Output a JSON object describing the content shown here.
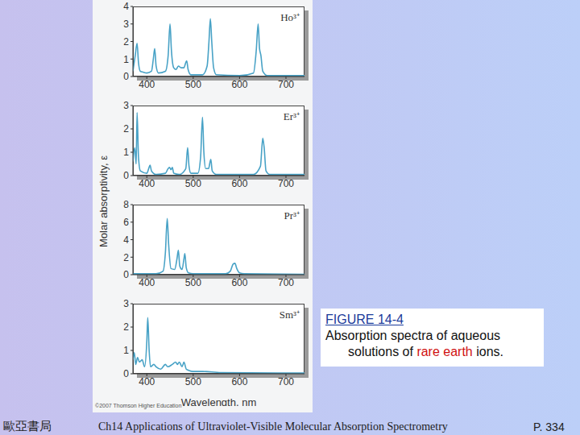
{
  "chart_data": [
    {
      "type": "line",
      "title": "Ho³⁺",
      "color": "#48a2c6",
      "xlim": [
        370,
        740
      ],
      "xticks": [
        400,
        500,
        600,
        700
      ],
      "ylim": [
        0,
        4
      ],
      "yticks": [
        0,
        1,
        2,
        3,
        4
      ],
      "x": [
        370,
        375,
        379,
        382,
        386,
        392,
        400,
        410,
        414,
        417,
        420,
        425,
        440,
        446,
        450,
        453,
        458,
        463,
        468,
        474,
        480,
        484,
        486,
        489,
        495,
        520,
        530,
        534,
        537,
        540,
        544,
        550,
        600,
        630,
        636,
        640,
        643,
        646,
        650,
        660,
        740
      ],
      "values": [
        0.3,
        1.2,
        1.9,
        0.8,
        0.3,
        0.25,
        0.2,
        0.3,
        1.0,
        1.6,
        0.6,
        0.2,
        0.3,
        1.2,
        3.0,
        1.5,
        0.5,
        0.4,
        0.6,
        0.5,
        0.5,
        0.8,
        0.9,
        0.4,
        0.1,
        0.1,
        0.6,
        2.0,
        3.3,
        2.0,
        0.5,
        0.1,
        0.05,
        0.2,
        1.5,
        3.0,
        1.6,
        1.2,
        0.3,
        0.05,
        0.05
      ]
    },
    {
      "type": "line",
      "title": "Er³⁺",
      "color": "#48a2c6",
      "xlim": [
        370,
        740
      ],
      "xticks": [
        400,
        500,
        600,
        700
      ],
      "ylim": [
        0,
        3
      ],
      "yticks": [
        0,
        1,
        2,
        3
      ],
      "x": [
        370,
        374,
        377,
        379,
        382,
        386,
        400,
        404,
        407,
        410,
        420,
        440,
        446,
        449,
        452,
        455,
        458,
        470,
        484,
        488,
        491,
        495,
        510,
        516,
        520,
        523,
        527,
        533,
        538,
        541,
        550,
        630,
        645,
        650,
        653,
        657,
        665,
        740
      ],
      "values": [
        0.6,
        1.2,
        0.5,
        2.7,
        0.8,
        0.2,
        0.1,
        0.3,
        0.45,
        0.2,
        0.05,
        0.1,
        0.3,
        0.35,
        0.25,
        0.35,
        0.1,
        0.05,
        0.3,
        1.2,
        0.4,
        0.1,
        0.1,
        0.8,
        2.5,
        1.0,
        0.3,
        0.3,
        0.7,
        0.2,
        0.05,
        0.05,
        0.4,
        1.6,
        1.2,
        0.2,
        0.05,
        0.05
      ]
    },
    {
      "type": "line",
      "title": "Pr³⁺",
      "color": "#48a2c6",
      "xlim": [
        370,
        740
      ],
      "xticks": [
        400,
        500,
        600,
        700
      ],
      "ylim": [
        0,
        8
      ],
      "yticks": [
        0,
        2,
        4,
        6,
        8
      ],
      "x": [
        370,
        420,
        435,
        440,
        444,
        447,
        452,
        460,
        465,
        468,
        471,
        476,
        480,
        482,
        485,
        490,
        500,
        570,
        580,
        586,
        590,
        594,
        600,
        610,
        740
      ],
      "values": [
        0.1,
        0.1,
        0.4,
        2.5,
        6.4,
        3.5,
        0.7,
        0.6,
        1.8,
        2.8,
        1.0,
        0.6,
        1.8,
        2.4,
        0.8,
        0.2,
        0.1,
        0.1,
        0.4,
        1.2,
        1.3,
        0.7,
        0.2,
        0.1,
        0.05
      ]
    },
    {
      "type": "line",
      "title": "Sm³⁺",
      "color": "#48a2c6",
      "xlabel": "Wavelength, nm",
      "xlim": [
        370,
        740
      ],
      "xticks": [
        400,
        500,
        600,
        700
      ],
      "ylim": [
        0,
        3
      ],
      "yticks": [
        0,
        1,
        2,
        3
      ],
      "x": [
        370,
        373,
        376,
        380,
        384,
        390,
        395,
        400,
        402,
        405,
        408,
        415,
        420,
        430,
        440,
        445,
        455,
        462,
        466,
        470,
        476,
        480,
        485,
        490,
        500,
        520,
        560,
        740
      ],
      "values": [
        0.6,
        0.9,
        0.4,
        0.7,
        0.5,
        0.6,
        0.3,
        1.4,
        2.4,
        1.0,
        0.3,
        0.4,
        0.3,
        0.2,
        0.4,
        0.3,
        0.4,
        0.5,
        0.4,
        0.5,
        0.3,
        0.5,
        0.2,
        0.15,
        0.1,
        0.1,
        0.05,
        0.03
      ]
    }
  ],
  "ylabel": "Molar absorptivity, ε",
  "copyright": "©2007 Thomson Higher Education",
  "caption": {
    "label": "FIGURE 14-4",
    "text_before": "Absorption spectra of aqueous solutions of ",
    "highlight": "rare earth",
    "text_after": " ions."
  },
  "footer": {
    "publisher": "歐亞書局",
    "chapter": "Ch14 Applications of Ultraviolet-Visible Molecular Absorption Spectrometry",
    "page": "P. 334"
  }
}
